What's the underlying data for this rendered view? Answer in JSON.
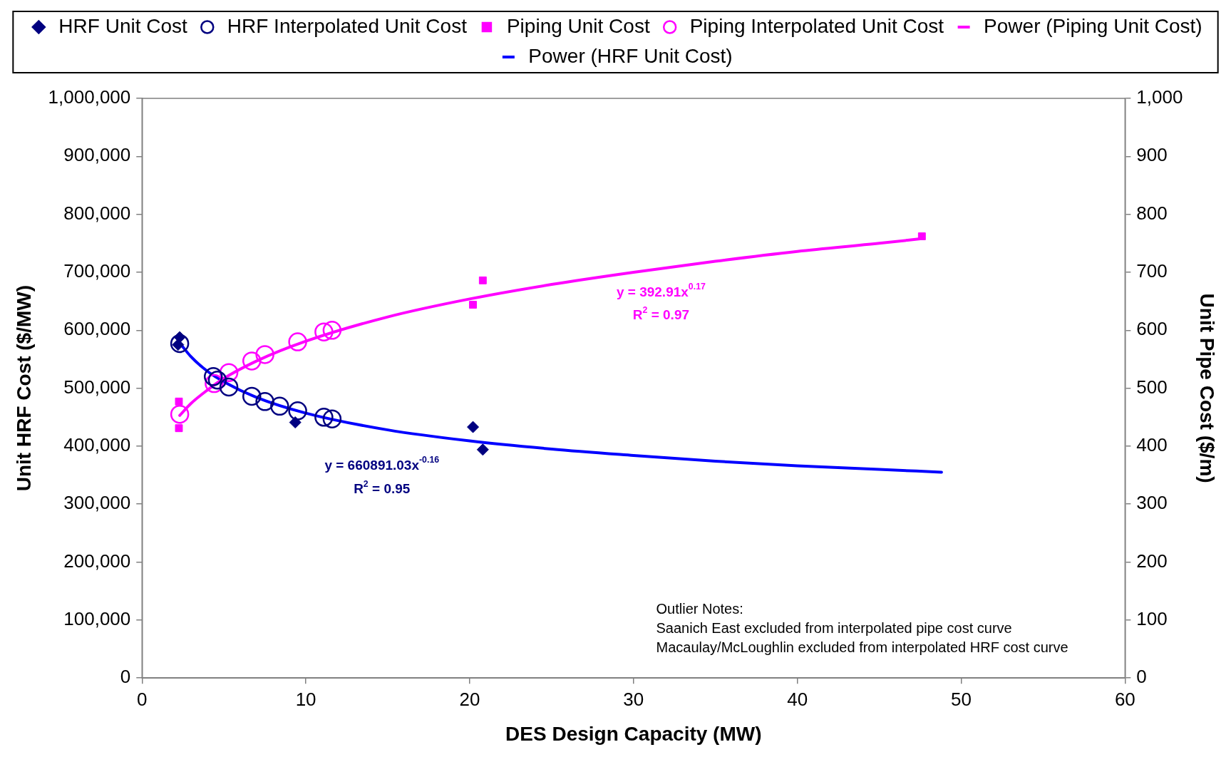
{
  "chart_data": {
    "type": "scatter",
    "xlabel": "DES Design Capacity (MW)",
    "ylabel": "Unit HRF Cost ($/MW)",
    "y2label": "Unit Pipe Cost ($/m)",
    "xlim": [
      0,
      60
    ],
    "xticks": [
      0,
      10,
      20,
      30,
      40,
      50,
      60
    ],
    "ylim": [
      0,
      1000000
    ],
    "yticks": [
      0,
      {
        "value": 100000,
        "label": "100,000"
      },
      {
        "value": 200000,
        "label": "200,000"
      },
      {
        "value": 300000,
        "label": "300,000"
      },
      {
        "value": 400000,
        "label": "400,000"
      },
      {
        "value": 500000,
        "label": "500,000"
      },
      {
        "value": 600000,
        "label": "600,000"
      },
      {
        "value": 700000,
        "label": "700,000"
      },
      {
        "value": 800000,
        "label": "800,000"
      },
      {
        "value": 900000,
        "label": "900,000"
      },
      {
        "value": 1000000,
        "label": "1,000,000"
      }
    ],
    "y2lim": [
      0,
      1000
    ],
    "y2ticks": [
      0,
      100,
      200,
      300,
      400,
      500,
      600,
      700,
      800,
      900,
      {
        "value": 1000,
        "label": "1,000"
      }
    ],
    "grid": false,
    "legend": "top",
    "series": [
      {
        "name": "HRF Unit Cost",
        "marker": "diamond",
        "color": "#000080",
        "x": [
          2.3,
          2.2,
          9.35,
          20.2,
          20.8
        ],
        "values": [
          588000,
          575000,
          441000,
          433000,
          394000
        ]
      },
      {
        "name": "HRF Interpolated Unit Cost",
        "marker": "circle",
        "color": "#000080",
        "x": [
          2.3,
          4.35,
          4.6,
          5.3,
          6.7,
          7.5,
          8.4,
          9.5,
          11.1,
          11.6
        ],
        "values": [
          577000,
          520000,
          514000,
          502000,
          486000,
          477000,
          469000,
          461000,
          450000,
          447000
        ]
      },
      {
        "name": "Piping Unit Cost",
        "marker": "square",
        "color": "#ff00ff",
        "axis": "y2",
        "x": [
          2.25,
          2.25,
          20.2,
          20.8,
          47.6
        ],
        "values": [
          477,
          431,
          644,
          686,
          762
        ]
      },
      {
        "name": "Piping Interpolated Unit Cost",
        "marker": "circle",
        "color": "#ff00ff",
        "axis": "y2",
        "x": [
          2.3,
          4.4,
          5.3,
          6.7,
          7.5,
          9.5,
          11.1,
          11.6
        ],
        "values": [
          455,
          508,
          527,
          547,
          558,
          580,
          597,
          600
        ]
      },
      {
        "name": "Power (Piping Unit Cost)",
        "type": "line",
        "marker": "none",
        "color": "#ff00ff",
        "axis": "y2",
        "x": [
          2.3,
          3,
          4,
          5,
          7,
          10,
          15,
          20,
          25,
          30,
          35,
          40,
          45,
          47.6
        ],
        "values": [
          453,
          474,
          497,
          517,
          547,
          581,
          623,
          654,
          679,
          700,
          719,
          736,
          750,
          758
        ]
      },
      {
        "name": "Power (HRF Unit Cost)",
        "type": "line",
        "marker": "none",
        "color": "#0000ff",
        "x": [
          2.3,
          3,
          4,
          5,
          7,
          10,
          15,
          20,
          25,
          30,
          35,
          40,
          45,
          48.8
        ],
        "values": [
          578000,
          554000,
          529000,
          511000,
          484000,
          457000,
          428000,
          409000,
          395000,
          384000,
          374000,
          366000,
          360000,
          355000
        ]
      }
    ],
    "annotations": [
      "y = 392.91x$^{0.17}$",
      "R$^{2}$ = 0.97",
      "y = 660891.03x$^{-0.16}$",
      "R$^{2}$ = 0.95",
      "Outlier Notes:",
      "Saanich East excluded from interpolated pipe cost curve",
      "Macaulay/McLoughlin excluded from interpolated HRF cost curve"
    ]
  }
}
